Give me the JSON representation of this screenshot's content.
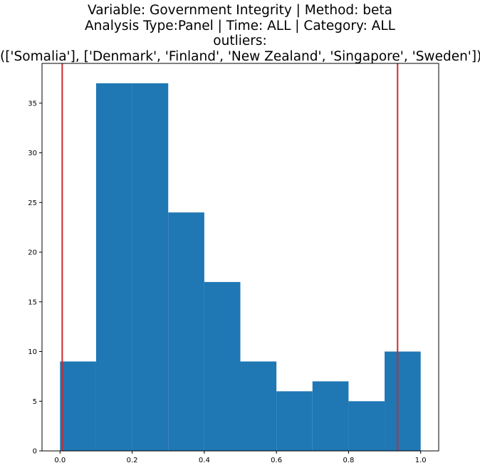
{
  "chart_data": {
    "type": "bar",
    "title_lines": [
      "Variable: Government Integrity | Method: beta",
      "Analysis Type:Panel | Time: ALL | Category: ALL",
      "outliers:",
      "(['Somalia'], ['Denmark', 'Finland', 'New Zealand', 'Singapore', 'Sweden'])"
    ],
    "bin_edges": [
      0.0,
      0.1,
      0.2,
      0.3,
      0.4,
      0.5,
      0.6,
      0.7,
      0.8,
      0.9,
      1.0
    ],
    "counts": [
      9,
      37,
      37,
      24,
      17,
      9,
      6,
      7,
      5,
      10
    ],
    "xlim": [
      -0.05,
      1.05
    ],
    "ylim": [
      0,
      39
    ],
    "x_ticks": [
      "0.0",
      "0.2",
      "0.4",
      "0.6",
      "0.8",
      "1.0"
    ],
    "y_ticks": [
      "0",
      "5",
      "10",
      "15",
      "20",
      "25",
      "30",
      "35"
    ],
    "vlines": [
      0.006,
      0.936
    ],
    "bar_color": "#1f77b4",
    "vline_color": "#d62728",
    "grid": false,
    "xlabel": "",
    "ylabel": ""
  }
}
